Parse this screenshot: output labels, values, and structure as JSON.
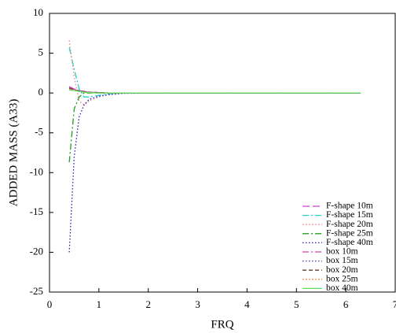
{
  "chart_data": {
    "type": "line",
    "x_label": "FRQ",
    "y_label": "ADDED MASS (A33)",
    "xlim": [
      0,
      7
    ],
    "xticks": [
      0,
      1,
      2,
      3,
      4,
      5,
      6,
      7
    ],
    "ylim": [
      -25,
      10
    ],
    "yticks": [
      -25,
      -20,
      -15,
      -10,
      -5,
      0,
      5,
      10
    ],
    "legend": "lower right",
    "x": [
      0.4,
      0.5,
      0.6,
      0.7,
      0.8,
      1.0,
      1.2,
      1.5,
      2,
      3,
      4,
      5,
      6,
      6.3
    ],
    "series": [
      {
        "name": "F-shape 10m",
        "color": "#d040d0",
        "style": "longdash",
        "values": [
          0.8,
          0.5,
          0.3,
          0.2,
          0.1,
          0.05,
          0,
          0,
          0,
          0,
          0,
          0,
          0,
          0
        ]
      },
      {
        "name": "F-shape 15m",
        "color": "#20d0d0",
        "style": "dashdot",
        "values": [
          5.7,
          3,
          0.5,
          -0.5,
          -0.5,
          -0.3,
          -0.1,
          0,
          0,
          0,
          0,
          0,
          0,
          0
        ]
      },
      {
        "name": "F-shape 20m",
        "color": "#f08080",
        "style": "dot",
        "values": [
          6.6,
          2,
          -1,
          -1.5,
          -1,
          -0.5,
          -0.2,
          0,
          0,
          0,
          0,
          0,
          0,
          0
        ]
      },
      {
        "name": "F-shape 25m",
        "color": "#20a020",
        "style": "dashdot",
        "values": [
          -8.7,
          -2,
          -0.5,
          0,
          0,
          0,
          0,
          0,
          0,
          0,
          0,
          0,
          0,
          0
        ]
      },
      {
        "name": "F-shape 40m",
        "color": "#2020c0",
        "style": "dot",
        "values": [
          -20,
          -8,
          -3,
          -1.5,
          -0.8,
          -0.4,
          -0.2,
          -0.05,
          0,
          0,
          0,
          0,
          0,
          0
        ]
      },
      {
        "name": "box 10m",
        "color": "#d040a0",
        "style": "dashdot",
        "values": [
          0.7,
          0.5,
          0.3,
          0.2,
          0.1,
          0.05,
          0,
          0,
          0,
          0,
          0,
          0,
          0,
          0
        ]
      },
      {
        "name": "box 15m",
        "color": "#4040c0",
        "style": "dot",
        "values": [
          0.6,
          0.4,
          0.25,
          0.15,
          0.1,
          0.05,
          0,
          0,
          0,
          0,
          0,
          0,
          0,
          0
        ]
      },
      {
        "name": "box 20m",
        "color": "#604030",
        "style": "dash",
        "values": [
          0.6,
          0.4,
          0.25,
          0.15,
          0.1,
          0.05,
          0,
          0,
          0,
          0,
          0,
          0,
          0,
          0
        ]
      },
      {
        "name": "box 25m",
        "color": "#f07020",
        "style": "dot",
        "values": [
          0.5,
          0.35,
          0.2,
          0.1,
          0.05,
          0,
          0,
          0,
          0,
          0,
          0,
          0,
          0,
          0
        ]
      },
      {
        "name": "box 40m",
        "color": "#60e060",
        "style": "solid",
        "values": [
          0.4,
          0.3,
          0.2,
          0.1,
          0.05,
          0,
          0,
          0,
          0,
          0,
          0,
          0,
          0,
          0
        ]
      }
    ]
  }
}
